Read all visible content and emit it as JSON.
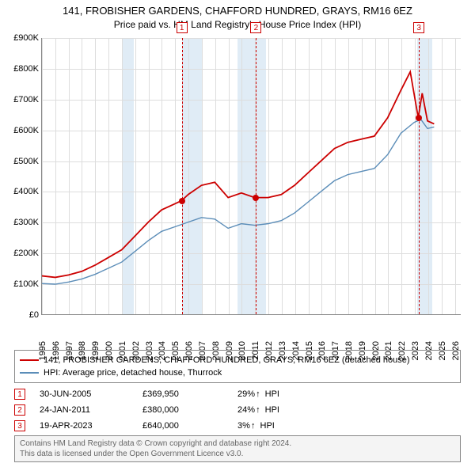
{
  "title": "141, FROBISHER GARDENS, CHAFFORD HUNDRED, GRAYS, RM16 6EZ",
  "subtitle": "Price paid vs. HM Land Registry's House Price Index (HPI)",
  "chart": {
    "type": "line",
    "x_domain": [
      1995,
      2026.5
    ],
    "y_domain": [
      0,
      900
    ],
    "y_unit_prefix": "£",
    "y_unit_suffix": "K",
    "y_ticks": [
      0,
      100,
      200,
      300,
      400,
      500,
      600,
      700,
      800,
      900
    ],
    "x_ticks": [
      1995,
      1996,
      1997,
      1998,
      1999,
      2000,
      2001,
      2002,
      2003,
      2004,
      2005,
      2006,
      2007,
      2008,
      2009,
      2010,
      2011,
      2012,
      2013,
      2014,
      2015,
      2016,
      2017,
      2018,
      2019,
      2020,
      2021,
      2022,
      2023,
      2024,
      2025,
      2026
    ],
    "background_color": "#ffffff",
    "grid_color": "#dddddd",
    "axis_fontsize": 11,
    "recession_bands": [
      {
        "from": 2001.0,
        "to": 2001.9
      },
      {
        "from": 2005.5,
        "to": 2007.0
      },
      {
        "from": 2009.7,
        "to": 2011.8
      },
      {
        "from": 2023.2,
        "to": 2024.3
      }
    ],
    "series": [
      {
        "id": "property",
        "label": "141, FROBISHER GARDENS, CHAFFORD HUNDRED, GRAYS, RM16 6EZ (detached house)",
        "color": "#cc0000",
        "line_width": 1.8,
        "points": [
          [
            1995.0,
            125
          ],
          [
            1996.0,
            120
          ],
          [
            1997.0,
            128
          ],
          [
            1998.0,
            140
          ],
          [
            1999.0,
            160
          ],
          [
            2000.0,
            185
          ],
          [
            2001.0,
            210
          ],
          [
            2002.0,
            255
          ],
          [
            2003.0,
            300
          ],
          [
            2004.0,
            340
          ],
          [
            2005.0,
            360
          ],
          [
            2005.5,
            370
          ],
          [
            2006.0,
            390
          ],
          [
            2007.0,
            420
          ],
          [
            2008.0,
            430
          ],
          [
            2009.0,
            380
          ],
          [
            2010.0,
            395
          ],
          [
            2011.0,
            380
          ],
          [
            2012.0,
            380
          ],
          [
            2013.0,
            390
          ],
          [
            2014.0,
            420
          ],
          [
            2015.0,
            460
          ],
          [
            2016.0,
            500
          ],
          [
            2017.0,
            540
          ],
          [
            2018.0,
            560
          ],
          [
            2019.0,
            570
          ],
          [
            2020.0,
            580
          ],
          [
            2021.0,
            640
          ],
          [
            2022.0,
            730
          ],
          [
            2022.7,
            790
          ],
          [
            2023.3,
            640
          ],
          [
            2023.6,
            720
          ],
          [
            2024.0,
            630
          ],
          [
            2024.5,
            620
          ]
        ]
      },
      {
        "id": "hpi",
        "label": "HPI: Average price, detached house, Thurrock",
        "color": "#5b8db8",
        "line_width": 1.4,
        "points": [
          [
            1995.0,
            100
          ],
          [
            1996.0,
            98
          ],
          [
            1997.0,
            105
          ],
          [
            1998.0,
            115
          ],
          [
            1999.0,
            130
          ],
          [
            2000.0,
            150
          ],
          [
            2001.0,
            170
          ],
          [
            2002.0,
            205
          ],
          [
            2003.0,
            240
          ],
          [
            2004.0,
            270
          ],
          [
            2005.0,
            285
          ],
          [
            2006.0,
            300
          ],
          [
            2007.0,
            315
          ],
          [
            2008.0,
            310
          ],
          [
            2009.0,
            280
          ],
          [
            2010.0,
            295
          ],
          [
            2011.0,
            290
          ],
          [
            2012.0,
            295
          ],
          [
            2013.0,
            305
          ],
          [
            2014.0,
            330
          ],
          [
            2015.0,
            365
          ],
          [
            2016.0,
            400
          ],
          [
            2017.0,
            435
          ],
          [
            2018.0,
            455
          ],
          [
            2019.0,
            465
          ],
          [
            2020.0,
            475
          ],
          [
            2021.0,
            520
          ],
          [
            2022.0,
            590
          ],
          [
            2023.0,
            625
          ],
          [
            2023.5,
            635
          ],
          [
            2024.0,
            605
          ],
          [
            2024.5,
            610
          ]
        ]
      }
    ],
    "markers": [
      {
        "n": 1,
        "x": 2005.5,
        "y": 370
      },
      {
        "n": 2,
        "x": 2011.07,
        "y": 380
      },
      {
        "n": 3,
        "x": 2023.3,
        "y": 640
      }
    ]
  },
  "sales": [
    {
      "n": 1,
      "date": "30-JUN-2005",
      "price": "£369,950",
      "delta": "29%",
      "arrow": "↑",
      "suffix": "HPI"
    },
    {
      "n": 2,
      "date": "24-JAN-2011",
      "price": "£380,000",
      "delta": "24%",
      "arrow": "↑",
      "suffix": "HPI"
    },
    {
      "n": 3,
      "date": "19-APR-2023",
      "price": "£640,000",
      "delta": "3%",
      "arrow": "↑",
      "suffix": "HPI"
    }
  ],
  "footer": {
    "line1": "Contains HM Land Registry data © Crown copyright and database right 2024.",
    "line2": "This data is licensed under the Open Government Licence v3.0."
  }
}
